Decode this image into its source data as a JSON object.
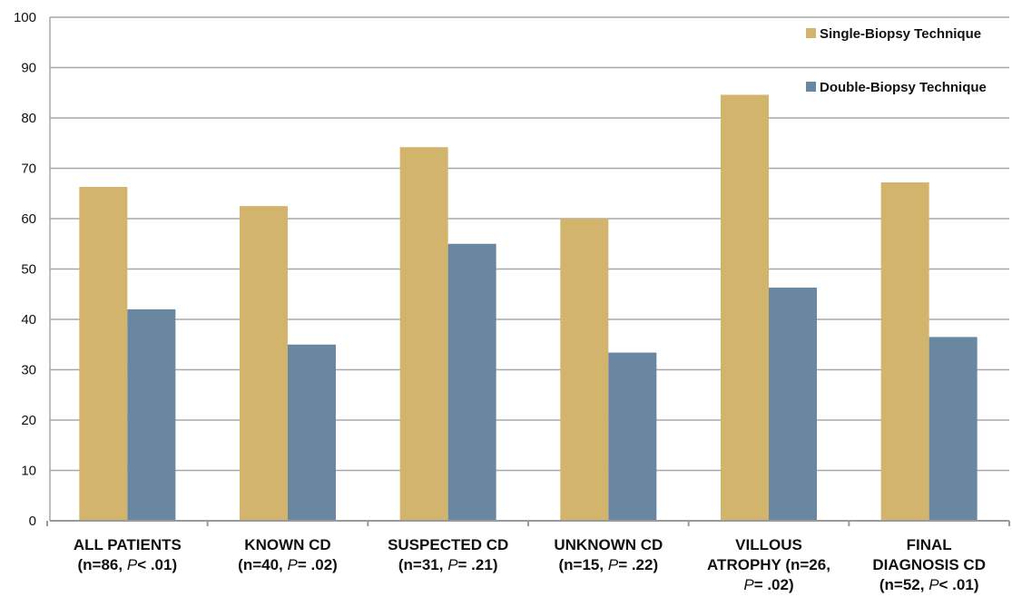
{
  "chart_data": {
    "type": "bar",
    "title": "",
    "xlabel": "",
    "ylabel": "",
    "ylim": [
      0,
      100
    ],
    "yticks": [
      "0",
      "10",
      "20",
      "30",
      "40",
      "50",
      "60",
      "70",
      "80",
      "90",
      "100"
    ],
    "grid": true,
    "legend_position": "top-right",
    "categories": [
      {
        "lines": [
          {
            "text": "ALL PATIENTS"
          },
          {
            "text": "(n=86, ",
            "p": "P",
            "rest": "< .01)"
          }
        ]
      },
      {
        "lines": [
          {
            "text": "KNOWN CD"
          },
          {
            "text": "(n=40, ",
            "p": "P",
            "rest": "= .02)"
          }
        ]
      },
      {
        "lines": [
          {
            "text": "SUSPECTED CD"
          },
          {
            "text": "(n=31, ",
            "p": "P",
            "rest": "= .21)"
          }
        ]
      },
      {
        "lines": [
          {
            "text": "UNKNOWN CD"
          },
          {
            "text": "(n=15, ",
            "p": "P",
            "rest": "= .22)"
          }
        ]
      },
      {
        "lines": [
          {
            "text": "VILLOUS"
          },
          {
            "text": "ATROPHY (n=26,"
          },
          {
            "text": "",
            "p": "P",
            "rest": "= .02)"
          }
        ]
      },
      {
        "lines": [
          {
            "text": "FINAL"
          },
          {
            "text": "DIAGNOSIS CD"
          },
          {
            "text": "(n=52, ",
            "p": "P",
            "rest": "< .01)"
          }
        ]
      }
    ],
    "series": [
      {
        "name": "Single-Biopsy Technique",
        "color": "#d2b46c",
        "values": [
          66.3,
          62.5,
          74.2,
          60.0,
          84.6,
          67.2
        ]
      },
      {
        "name": "Double-Biopsy Technique",
        "color": "#6a87a1",
        "values": [
          42.0,
          35.0,
          55.0,
          33.4,
          46.3,
          36.5
        ]
      }
    ]
  }
}
